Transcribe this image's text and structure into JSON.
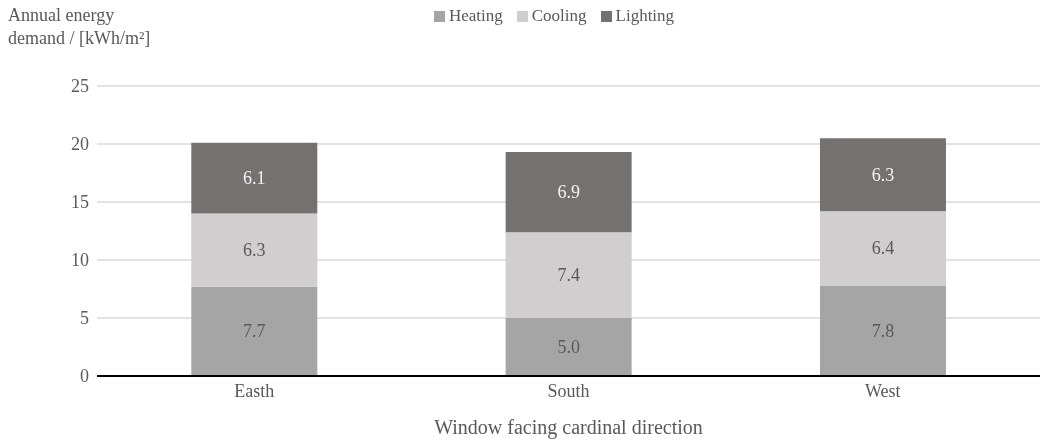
{
  "chart_data": {
    "type": "bar",
    "stacked": true,
    "xlabel": "Window facing cardinal direction",
    "ylabel": "Annual energy demand / [kWh/m²]",
    "categories": [
      "Easth",
      "South",
      "West"
    ],
    "series": [
      {
        "name": "Heating",
        "color": "#a5a5a5",
        "values": [
          7.7,
          5.0,
          7.8
        ],
        "value_labels": [
          "7.7",
          "5.0",
          "7.8"
        ]
      },
      {
        "name": "Cooling",
        "color": "#d0cece",
        "values": [
          6.3,
          7.4,
          6.4
        ],
        "value_labels": [
          "6.3",
          "7.4",
          "6.4"
        ]
      },
      {
        "name": "Lighting",
        "color": "#767171",
        "values": [
          6.1,
          6.9,
          6.3
        ],
        "value_labels": [
          "6.1",
          "6.9",
          "6.3"
        ]
      }
    ],
    "ylim": [
      0,
      25
    ],
    "yticks": [
      0,
      5,
      10,
      15,
      20,
      25
    ],
    "grid": "y",
    "legend": "top"
  }
}
